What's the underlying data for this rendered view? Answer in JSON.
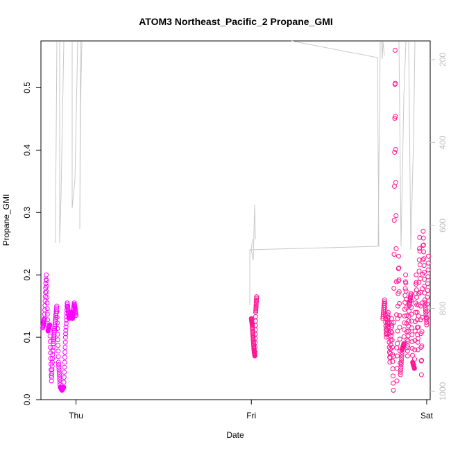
{
  "chart_data": {
    "type": "scatter",
    "title": "ATOM3 Northeast_Pacific_2 Propane_GMI",
    "xlabel": "Date",
    "ylabel": "Propane_GMI",
    "x_ticks": [
      "Thu",
      "Fri",
      "Sat"
    ],
    "xlim": [
      -0.2,
      2.02
    ],
    "ylim": [
      0,
      0.575
    ],
    "y_ticks": [
      0.0,
      0.1,
      0.2,
      0.3,
      0.4,
      0.5
    ],
    "right_axis": {
      "ticks": [
        200,
        400,
        600,
        800,
        1000
      ],
      "reversed": true,
      "lim": [
        1020,
        155
      ],
      "color": "#c0c0c0"
    },
    "colors": {
      "magenta": "#ff00ff",
      "pink": "#ff1493",
      "gray_line": "#c8c8c8"
    },
    "series": [
      {
        "color": "#ff00ff",
        "x": [
          -0.19,
          -0.18,
          -0.17,
          -0.16,
          -0.15,
          -0.14,
          -0.13,
          -0.12,
          -0.11,
          -0.1,
          -0.09,
          -0.08,
          -0.07,
          -0.06,
          -0.05,
          -0.04,
          -0.03,
          -0.02,
          -0.01,
          0.0
        ],
        "y": [
          0.115,
          0.13,
          0.2,
          0.11,
          0.12,
          0.03,
          0.09,
          0.12,
          0.15,
          0.06,
          0.02,
          0.015,
          0.02,
          0.1,
          0.155,
          0.13,
          0.14,
          0.13,
          0.155,
          0.135
        ]
      },
      {
        "color": "#ff1493",
        "x": [
          1.0,
          1.005,
          1.01,
          1.015,
          1.02,
          1.025,
          1.03
        ],
        "y": [
          0.13,
          0.12,
          0.1,
          0.08,
          0.07,
          0.14,
          0.165
        ]
      },
      {
        "color": "#ff1493",
        "x": [
          1.75,
          1.76,
          1.77,
          1.78,
          1.79,
          1.8,
          1.81,
          1.82,
          1.83,
          1.84,
          1.85,
          1.86,
          1.87,
          1.88,
          1.89,
          1.9,
          1.91,
          1.92,
          1.93,
          1.94,
          1.95,
          1.96,
          1.97,
          1.98,
          1.99,
          2.0,
          2.01
        ],
        "y": [
          0.13,
          0.16,
          0.1,
          0.14,
          0.06,
          0.13,
          0.015,
          0.56,
          0.03,
          0.23,
          0.04,
          0.08,
          0.09,
          0.2,
          0.07,
          0.15,
          0.17,
          0.06,
          0.05,
          0.2,
          0.08,
          0.26,
          0.04,
          0.27,
          0.16,
          0.12,
          0.23
        ]
      }
    ]
  }
}
